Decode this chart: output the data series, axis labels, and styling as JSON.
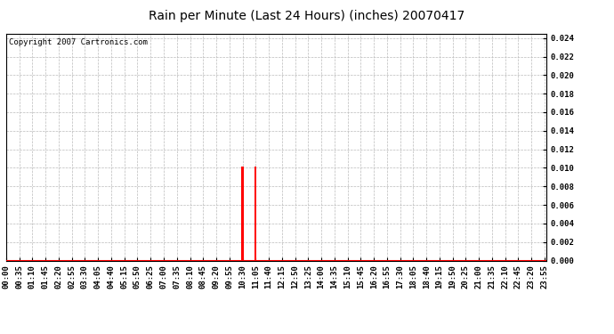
{
  "title": "Rain per Minute (Last 24 Hours) (inches) 20070417",
  "copyright_text": "Copyright 2007 Cartronics.com",
  "ylim": [
    0.0,
    0.0245
  ],
  "yticks": [
    0.0,
    0.002,
    0.004,
    0.006,
    0.008,
    0.01,
    0.012,
    0.014,
    0.016,
    0.018,
    0.02,
    0.022,
    0.024
  ],
  "bar_color": "#ff0000",
  "baseline_color": "#ff0000",
  "background_color": "#ffffff",
  "grid_color": "#bbbbbb",
  "bar_data": [
    {
      "minute": 630,
      "value": 0.0101
    },
    {
      "minute": 665,
      "value": 0.0101
    }
  ],
  "total_minutes": 1440,
  "x_tick_interval": 35,
  "title_fontsize": 10,
  "tick_fontsize": 6.5,
  "copyright_fontsize": 6.5
}
